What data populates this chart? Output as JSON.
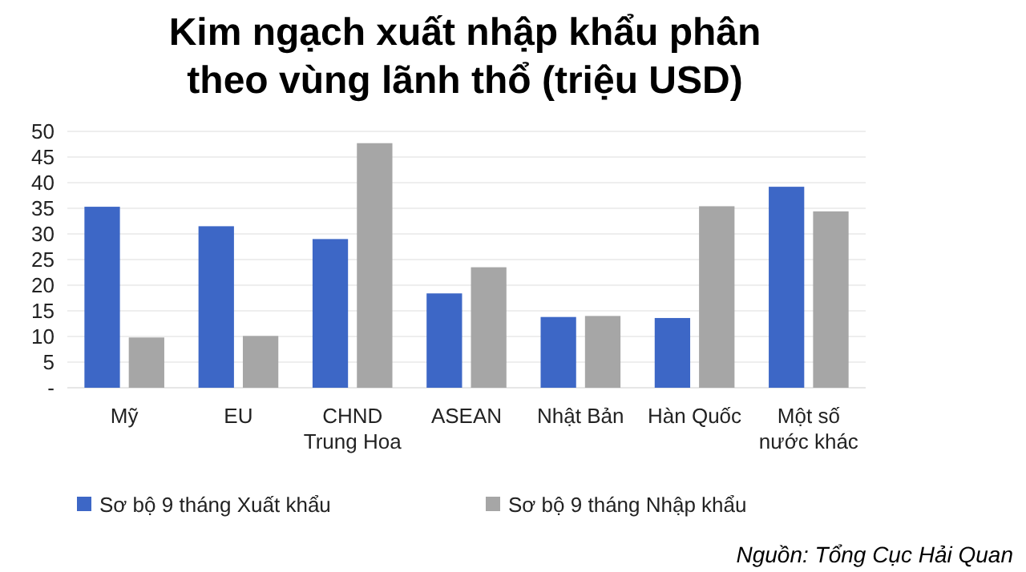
{
  "chart_data": {
    "type": "bar",
    "title": "Kim ngạch xuất nhập khẩu phân\ntheo vùng lãnh thổ (triệu USD)",
    "categories": [
      "Mỹ",
      "EU",
      "CHND\nTrung Hoa",
      "ASEAN",
      "Nhật Bản",
      "Hàn Quốc",
      "Một số\nnước khác"
    ],
    "series": [
      {
        "name": "Sơ bộ 9 tháng Xuất khẩu",
        "color": "#3d67c6",
        "values": [
          35.3,
          31.5,
          29,
          18.4,
          13.8,
          13.6,
          39.2
        ]
      },
      {
        "name": "Sơ bộ 9 tháng Nhập khẩu",
        "color": "#a6a6a6",
        "values": [
          9.8,
          10.1,
          47.7,
          23.5,
          14,
          35.4,
          34.4
        ]
      }
    ],
    "ylim": [
      0,
      50
    ],
    "yticks": [
      {
        "value": 0,
        "label": "-"
      },
      5,
      10,
      15,
      20,
      25,
      30,
      35,
      40,
      45,
      50
    ],
    "grid": "y",
    "legend": "bottom",
    "annotations": [
      "Nguồn: Tổng Cục Hải Quan"
    ]
  }
}
